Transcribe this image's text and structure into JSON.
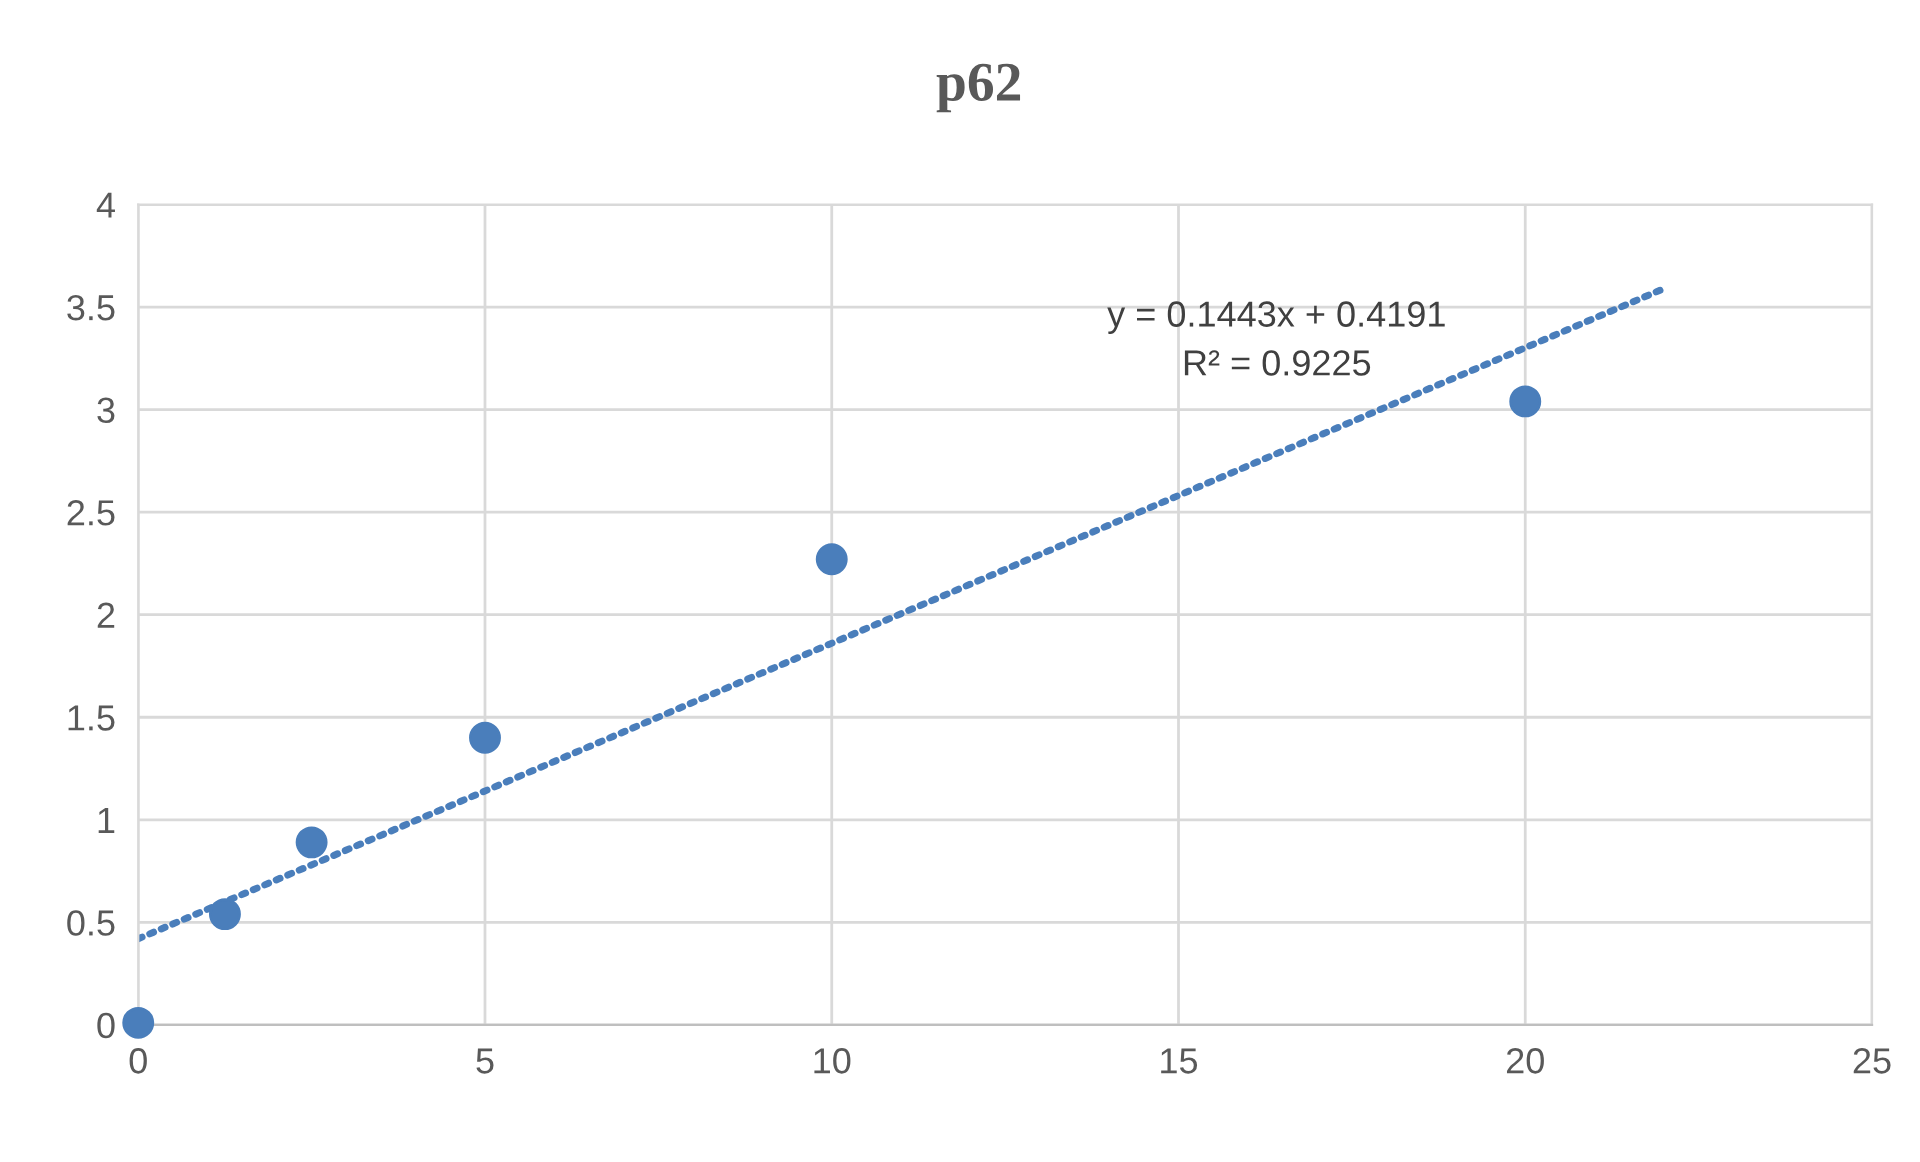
{
  "chart_data": {
    "type": "scatter",
    "title": "p62",
    "series": [
      {
        "color": "#4a7ebb",
        "x": [
          0,
          1.25,
          2.5,
          5,
          10,
          20
        ],
        "values": [
          0.01,
          0.54,
          0.89,
          1.4,
          2.27,
          3.04
        ],
        "marker": "circle"
      },
      {
        "type": "line",
        "color": "#4a7ebb",
        "x": [
          0,
          22
        ],
        "values": [
          0.42,
          3.59
        ],
        "marker": "none",
        "line_style": "dotted"
      }
    ],
    "annotations": [
      "y = 0.1443x + 0.4191",
      "R² = 0.9225"
    ],
    "xlim": [
      0,
      25
    ],
    "xticks": [
      0,
      5,
      10,
      15,
      20,
      25
    ],
    "ylim": [
      0,
      4
    ],
    "yticks": [
      0,
      0.5,
      1,
      1.5,
      2,
      2.5,
      3,
      3.5,
      4
    ],
    "grid": true,
    "legend": false
  }
}
